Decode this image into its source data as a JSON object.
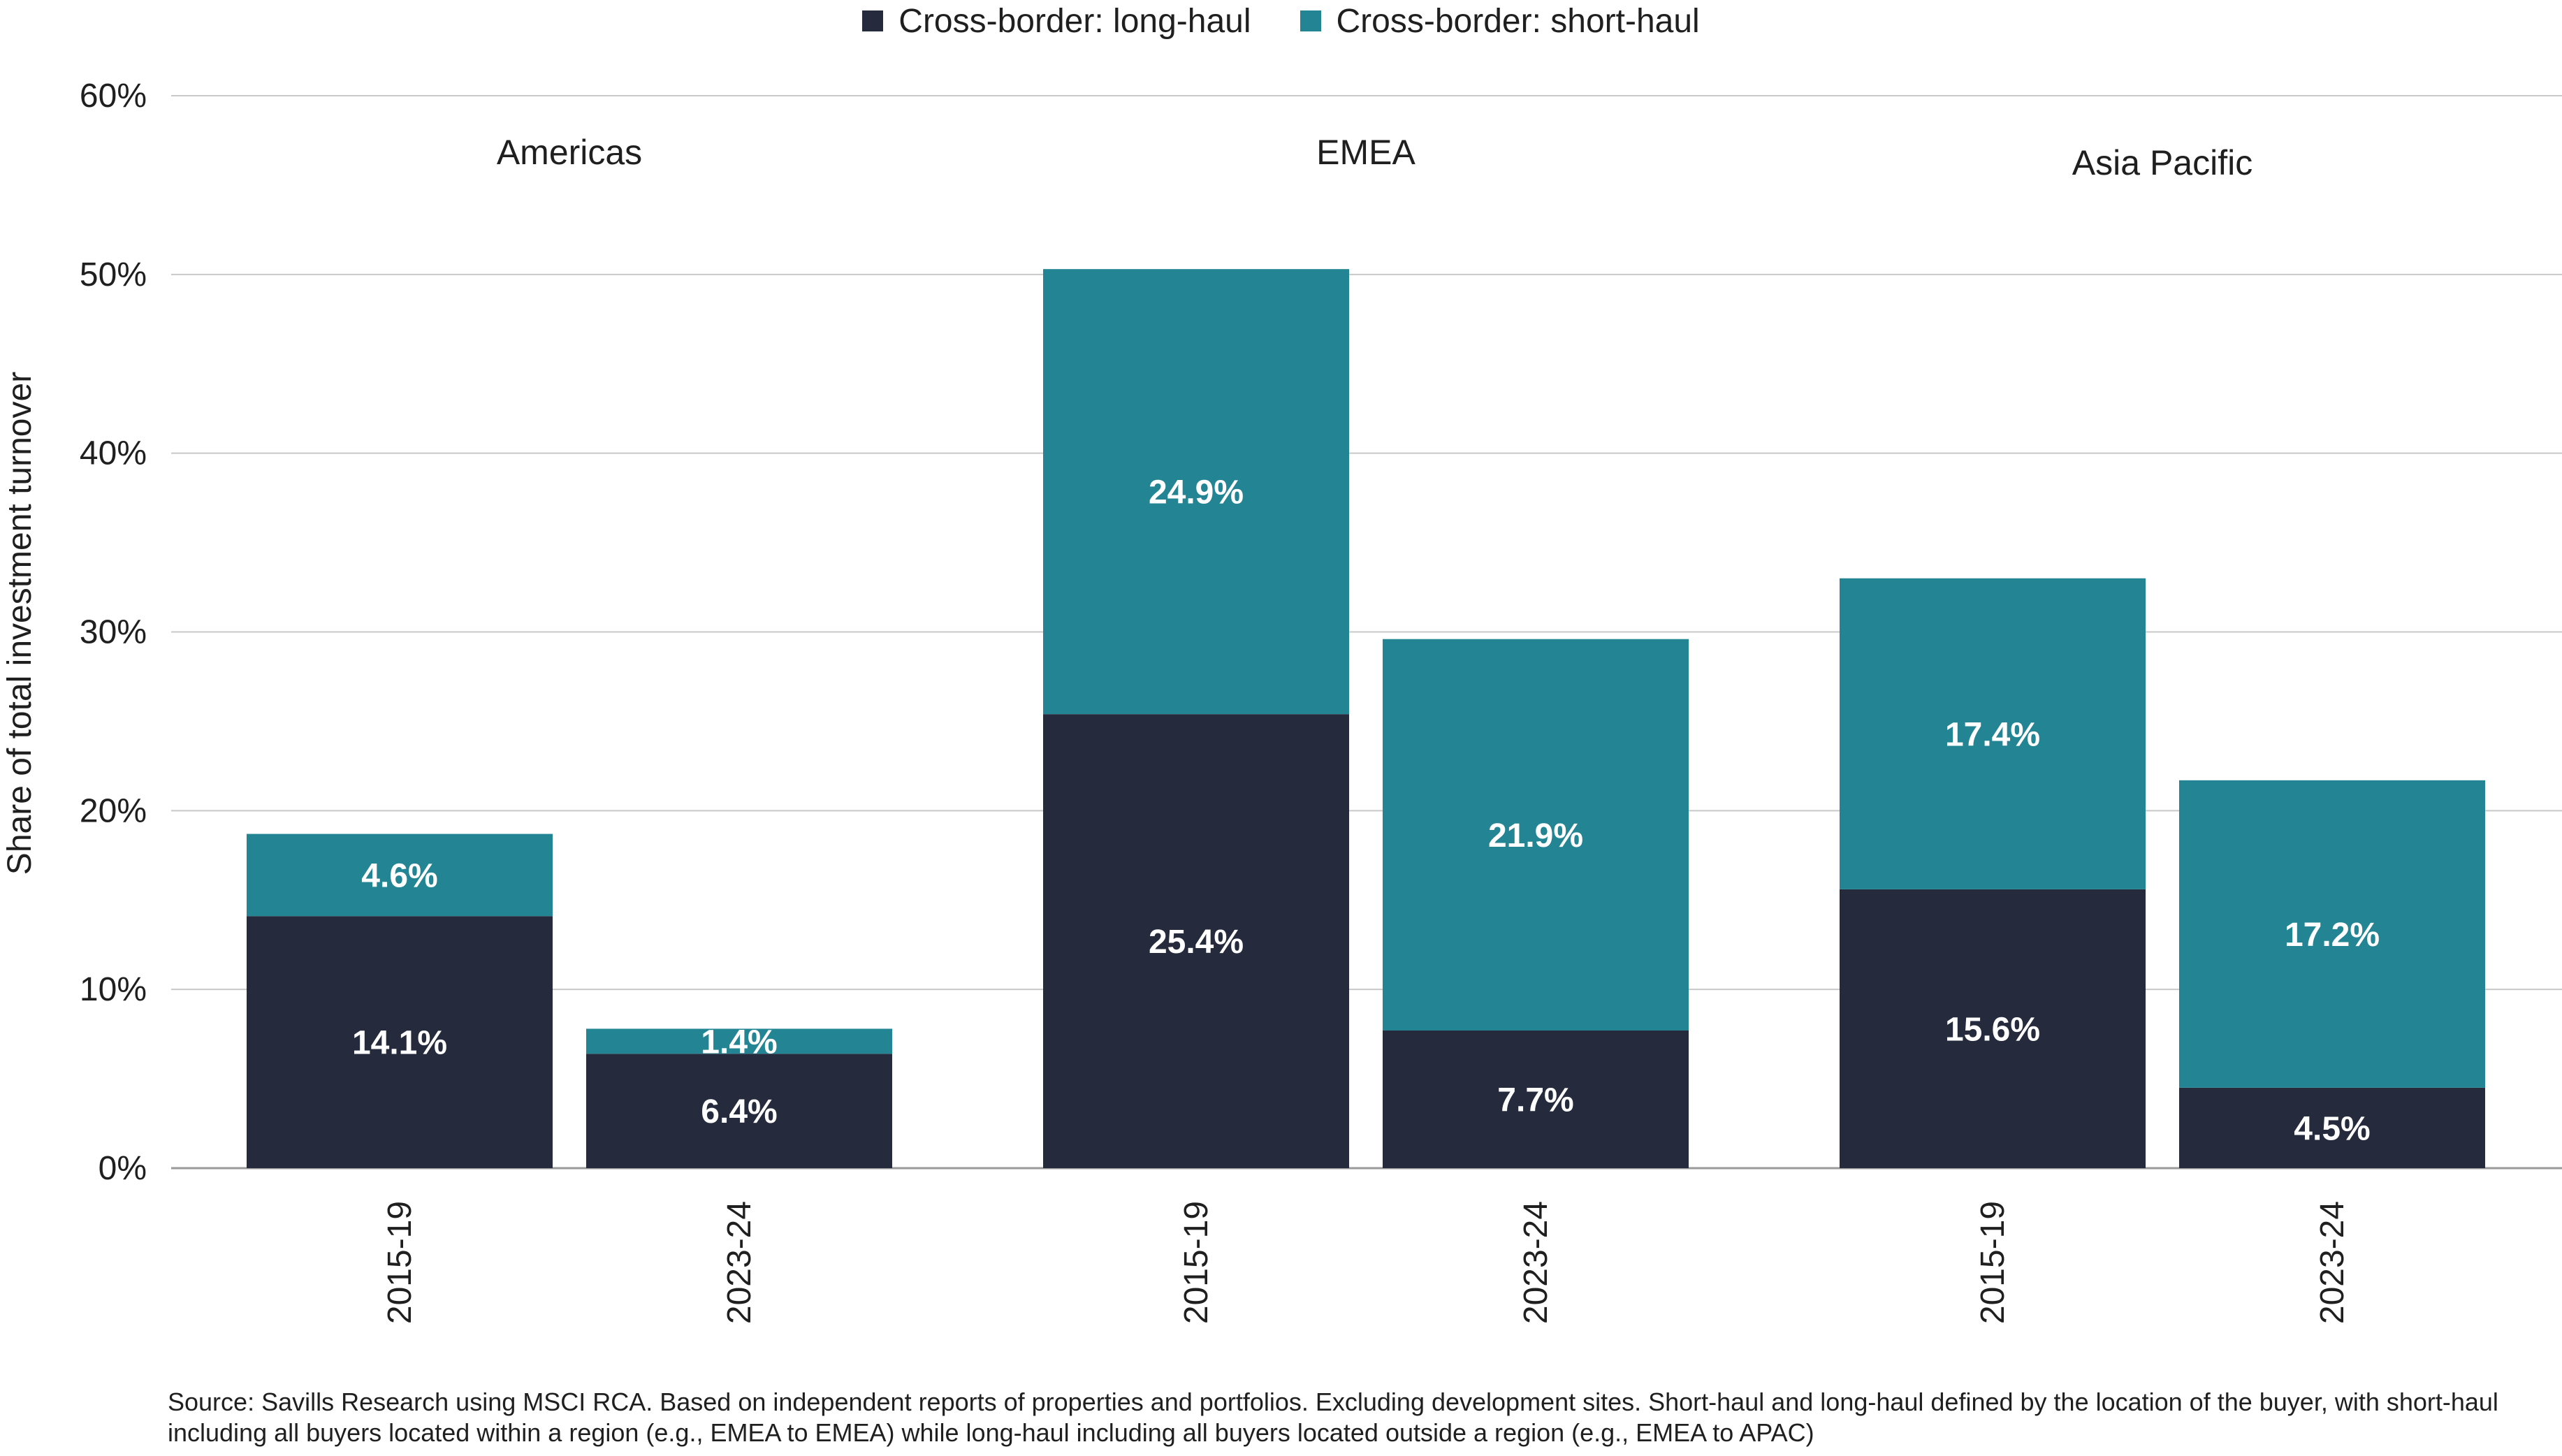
{
  "chart_data": {
    "type": "bar",
    "stacked": true,
    "ylabel": "Share of total investment turnover",
    "ylim": [
      0,
      60
    ],
    "yticks": [
      "0%",
      "10%",
      "20%",
      "30%",
      "40%",
      "50%",
      "60%"
    ],
    "grid": true,
    "legend_placement": "top-center",
    "groups": [
      {
        "label": "Americas",
        "categories": [
          "2015-19",
          "2023-24"
        ]
      },
      {
        "label": "EMEA",
        "categories": [
          "2015-19",
          "2023-24"
        ]
      },
      {
        "label": "Asia Pacific",
        "categories": [
          "2015-19",
          "2023-24"
        ]
      }
    ],
    "series": [
      {
        "name": "Cross-border: long-haul",
        "color": "#252a3d",
        "values": [
          14.1,
          6.4,
          25.4,
          7.7,
          15.6,
          4.5
        ],
        "labels": [
          "14.1%",
          "6.4%",
          "25.4%",
          "7.7%",
          "15.6%",
          "4.5%"
        ]
      },
      {
        "name": "Cross-border: short-haul",
        "color": "#238593",
        "values": [
          4.6,
          1.4,
          24.9,
          21.9,
          17.4,
          17.2
        ],
        "labels": [
          "4.6%",
          "1.4%",
          "24.9%",
          "21.9%",
          "17.4%",
          "17.2%"
        ]
      }
    ]
  },
  "source_note": "Source: Savills Research using MSCI RCA. Based on independent reports of properties and portfolios. Excluding development sites. Short-haul and long-haul defined by the  location of the buyer, with short-haul including all buyers located within a region (e.g., EMEA to EMEA) while long-haul including all buyers located outside a region (e.g., EMEA to APAC)"
}
